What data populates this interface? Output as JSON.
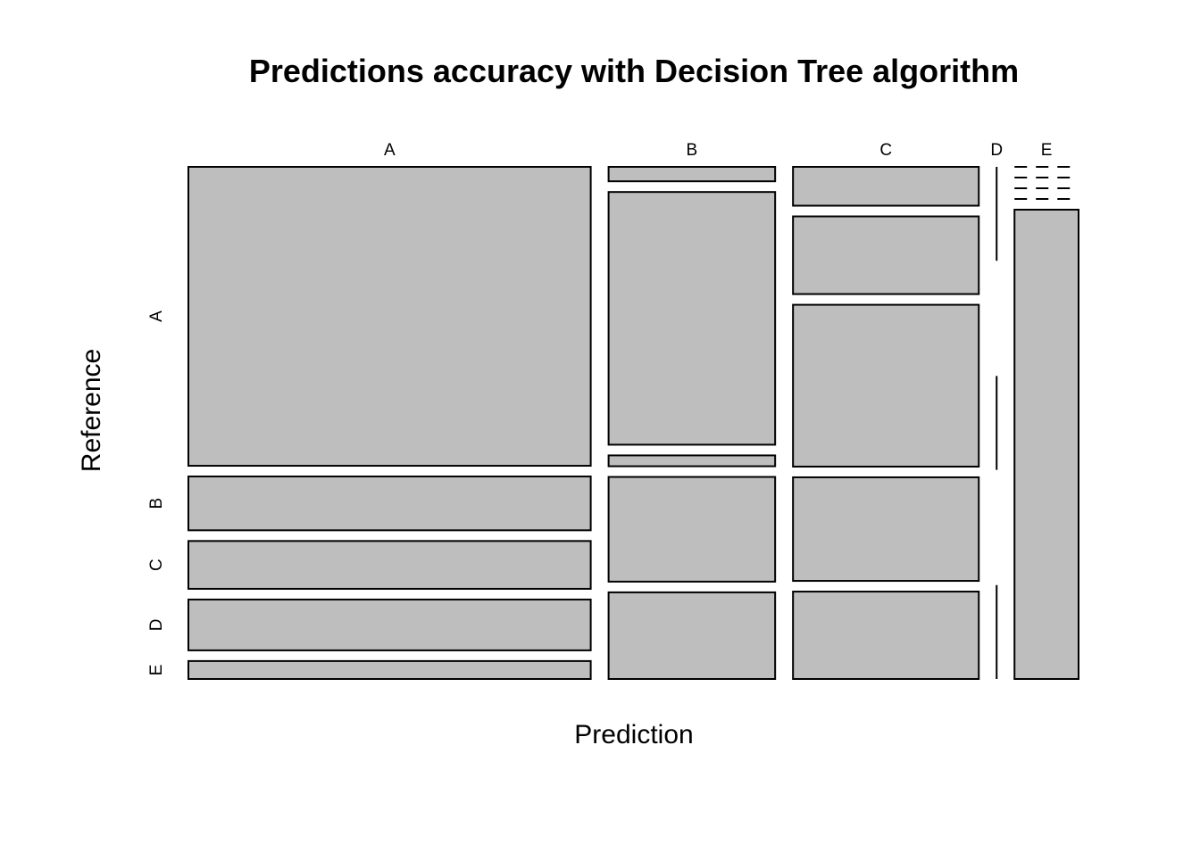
{
  "chart_data": {
    "type": "mosaic",
    "title": "Predictions accuracy with Decision Tree algorithm",
    "xlabel": "Prediction",
    "ylabel": "Reference",
    "x_categories": [
      "A",
      "B",
      "C",
      "D",
      "E"
    ],
    "y_categories": [
      "A",
      "B",
      "C",
      "D",
      "E"
    ],
    "matrix_note": "rows = Prediction, columns = Reference; proportional counts estimated from tile sizes",
    "counts": [
      [
        1000,
        180,
        160,
        170,
        60
      ],
      [
        20,
        350,
        15,
        145,
        120
      ],
      [
        60,
        120,
        250,
        160,
        135
      ],
      [
        0,
        0,
        0,
        0,
        0
      ],
      [
        0,
        0,
        0,
        0,
        250
      ]
    ],
    "grid": false,
    "legend": "none",
    "colors": {
      "tile_fill": "#bebebe",
      "tile_stroke": "#000000",
      "background": "#ffffff"
    }
  }
}
